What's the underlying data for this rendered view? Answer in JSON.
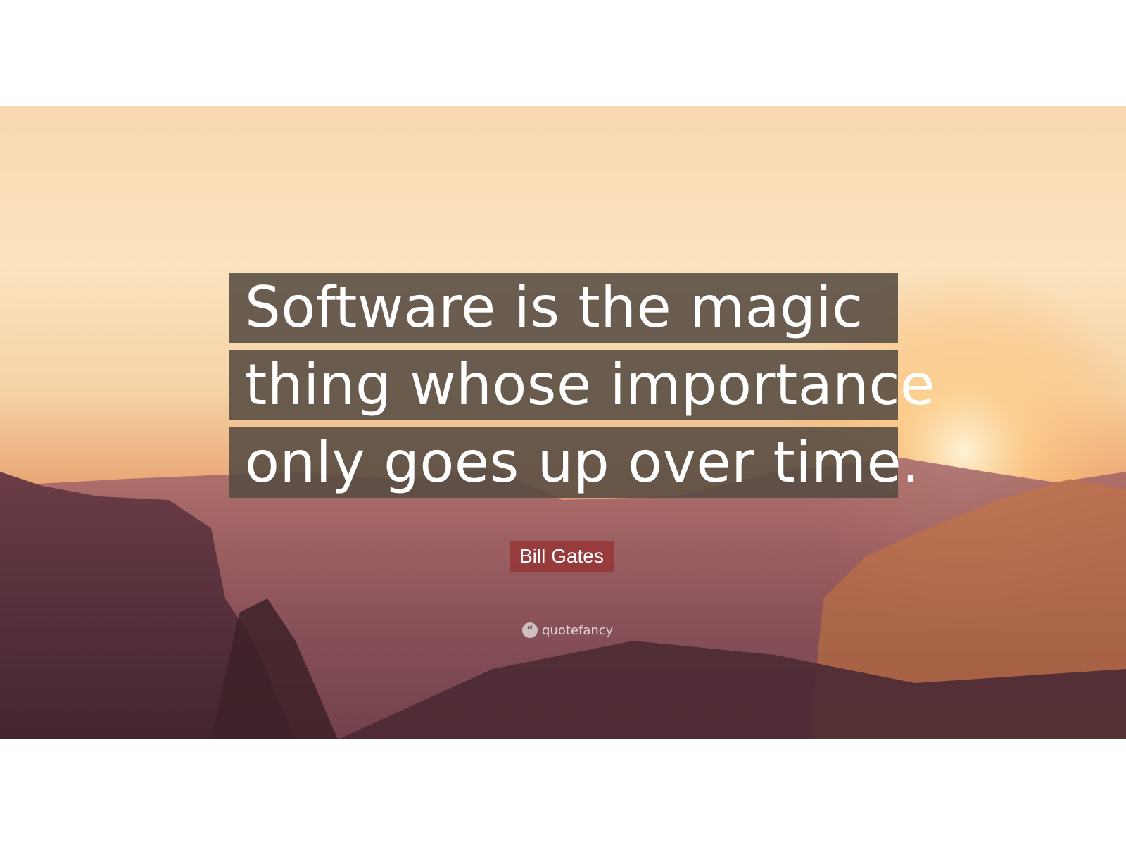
{
  "quote": {
    "lines": [
      "Software is the magic",
      "thing whose importance",
      "only goes up over time."
    ]
  },
  "author": "Bill Gates",
  "brand": {
    "name": "quotefancy",
    "icon": "quote-mark-icon"
  },
  "colors": {
    "quote_box": "#554b41",
    "author_box": "#963737",
    "sky_top": "#f8d8b0",
    "mountains_dark": "#4a2832"
  }
}
